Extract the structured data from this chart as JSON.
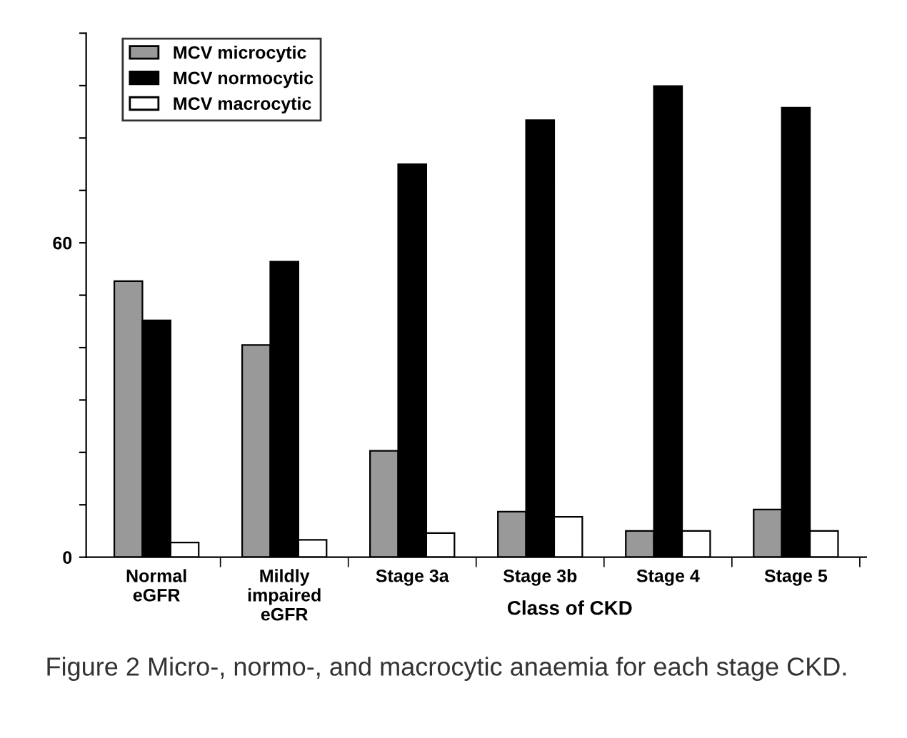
{
  "chart_data": {
    "type": "bar",
    "xlabel": "Class of CKD",
    "categories": [
      "Normal\neGFR",
      "Mildly\nimpaired\neGFR",
      "Stage 3a",
      "Stage 3b",
      "Stage 4",
      "Stage 5"
    ],
    "series": [
      {
        "name": "MCV microcytic",
        "color": "#999999",
        "values": [
          52.7,
          40.5,
          20.3,
          8.7,
          5.0,
          9.1
        ]
      },
      {
        "name": "MCV normocytic",
        "color": "#000000",
        "values": [
          45.2,
          56.4,
          75.0,
          83.4,
          89.9,
          85.8
        ]
      },
      {
        "name": "MCV macrocytic",
        "color": "#ffffff",
        "values": [
          2.8,
          3.3,
          4.6,
          7.7,
          5.0,
          5.0
        ]
      }
    ],
    "ylim": [
      0,
      100
    ],
    "yticks": [
      0,
      {
        "value": 10,
        "label": null
      },
      {
        "value": 20,
        "label": null
      },
      {
        "value": 30,
        "label": null
      },
      {
        "value": 40,
        "label": null
      },
      {
        "value": 50,
        "label": null
      },
      60,
      {
        "value": 70,
        "label": null
      },
      {
        "value": 80,
        "label": null
      },
      {
        "value": 90,
        "label": null
      },
      {
        "value": 100,
        "label": null
      }
    ],
    "grid": false,
    "legend": "top left",
    "annotations": [
      "Figure 2 Micro-, normo-, and macrocytic anaemia for each stage CKD."
    ]
  }
}
